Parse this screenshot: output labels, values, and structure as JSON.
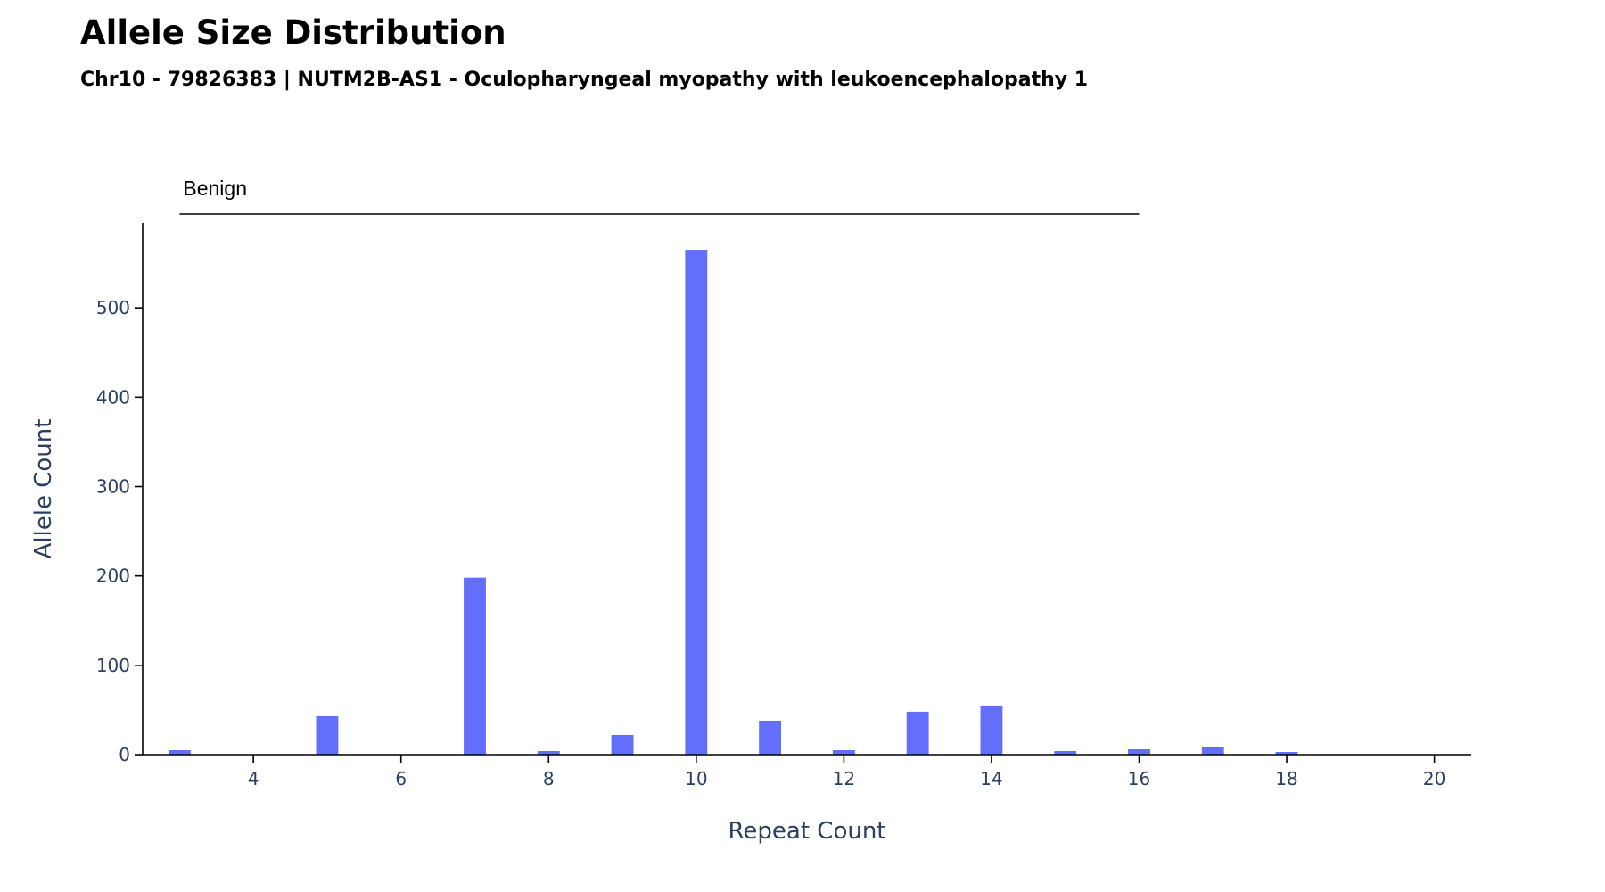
{
  "chart_data": {
    "type": "bar",
    "title": "Allele Size Distribution",
    "subtitle": "Chr10 - 79826383 | NUTM2B-AS1 - Oculopharyngeal myopathy with leukoencephalopathy 1",
    "xlabel": "Repeat Count",
    "ylabel": "Allele Count",
    "xlim": [
      2.5,
      20.5
    ],
    "ylim": [
      0,
      595
    ],
    "x_ticks": [
      4,
      6,
      8,
      10,
      12,
      14,
      16,
      18,
      20
    ],
    "y_ticks": [
      0,
      100,
      200,
      300,
      400,
      500
    ],
    "grid": false,
    "bar_color": "#636efa",
    "x": [
      3,
      5,
      7,
      8,
      9,
      10,
      11,
      12,
      13,
      14,
      15,
      16,
      17,
      18
    ],
    "values": [
      5,
      43,
      198,
      4,
      22,
      565,
      38,
      5,
      48,
      55,
      4,
      6,
      8,
      3
    ],
    "annotations": [
      {
        "label": "Benign",
        "x_start": 3,
        "x_end": 16
      }
    ]
  }
}
